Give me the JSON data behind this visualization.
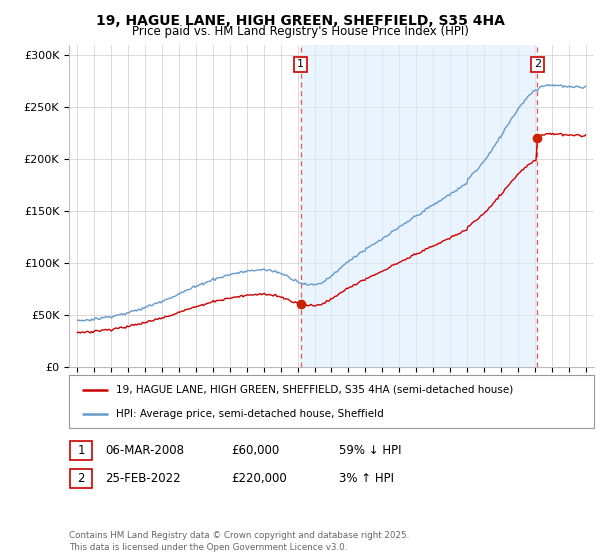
{
  "title_line1": "19, HAGUE LANE, HIGH GREEN, SHEFFIELD, S35 4HA",
  "title_line2": "Price paid vs. HM Land Registry's House Price Index (HPI)",
  "background_color": "#ffffff",
  "plot_bg_color": "#ffffff",
  "grid_color": "#cccccc",
  "hpi_color": "#6699cc",
  "hpi_fill_color": "#ddeeff",
  "price_color": "#cc0000",
  "dashed_line_color": "#ee5555",
  "yticks": [
    0,
    50000,
    100000,
    150000,
    200000,
    250000,
    300000
  ],
  "ytick_labels": [
    "£0",
    "£50K",
    "£100K",
    "£150K",
    "£200K",
    "£250K",
    "£300K"
  ],
  "xlim_start": 1994.5,
  "xlim_end": 2025.5,
  "ylim": [
    0,
    310000
  ],
  "transaction1_date": 2008.18,
  "transaction1_price": 60000,
  "transaction1_label": "1",
  "transaction2_date": 2022.15,
  "transaction2_price": 220000,
  "transaction2_label": "2",
  "legend_line1": "19, HAGUE LANE, HIGH GREEN, SHEFFIELD, S35 4HA (semi-detached house)",
  "legend_line2": "HPI: Average price, semi-detached house, Sheffield",
  "note1_date": "06-MAR-2008",
  "note1_price": "£60,000",
  "note1_pct": "59% ↓ HPI",
  "note2_date": "25-FEB-2022",
  "note2_price": "£220,000",
  "note2_pct": "3% ↑ HPI",
  "footer": "Contains HM Land Registry data © Crown copyright and database right 2025.\nThis data is licensed under the Open Government Licence v3.0.",
  "xticks": [
    1995,
    1996,
    1997,
    1998,
    1999,
    2000,
    2001,
    2002,
    2003,
    2004,
    2005,
    2006,
    2007,
    2008,
    2009,
    2010,
    2011,
    2012,
    2013,
    2014,
    2015,
    2016,
    2017,
    2018,
    2019,
    2020,
    2021,
    2022,
    2023,
    2024,
    2025
  ]
}
